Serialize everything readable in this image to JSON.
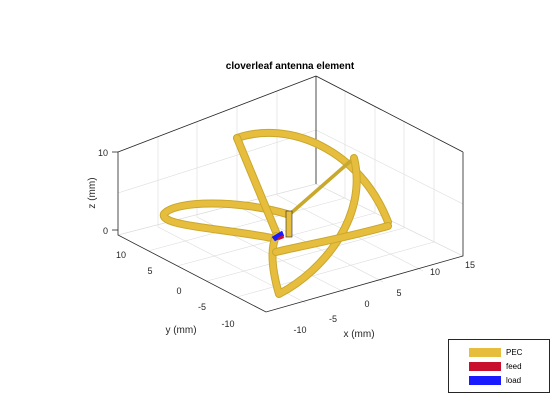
{
  "title": "cloverleaf antenna element",
  "axes": {
    "xlabel": "x (mm)",
    "ylabel": "y (mm)",
    "zlabel": "z (mm)",
    "x_ticks": [
      "-10",
      "-5",
      "0",
      "5",
      "10",
      "15"
    ],
    "y_ticks": [
      "10",
      "5",
      "0",
      "-5",
      "-10"
    ],
    "z_ticks": [
      "0",
      "10"
    ],
    "grid": true
  },
  "legend": {
    "placement": "bottom-right",
    "items": [
      {
        "label": "PEC",
        "color": "#e6bd3c"
      },
      {
        "label": "feed",
        "color": "#c8102e"
      },
      {
        "label": "load",
        "color": "#1a1aff"
      }
    ]
  },
  "chart_data": {
    "type": "3d-geometry",
    "title": "cloverleaf antenna element",
    "xlabel": "x (mm)",
    "ylabel": "y (mm)",
    "zlabel": "z (mm)",
    "xlim": [
      -13,
      15
    ],
    "ylim": [
      -13,
      13
    ],
    "zlim": [
      -1,
      11
    ],
    "grid": true,
    "legend_placement": "bottom-right"
  }
}
